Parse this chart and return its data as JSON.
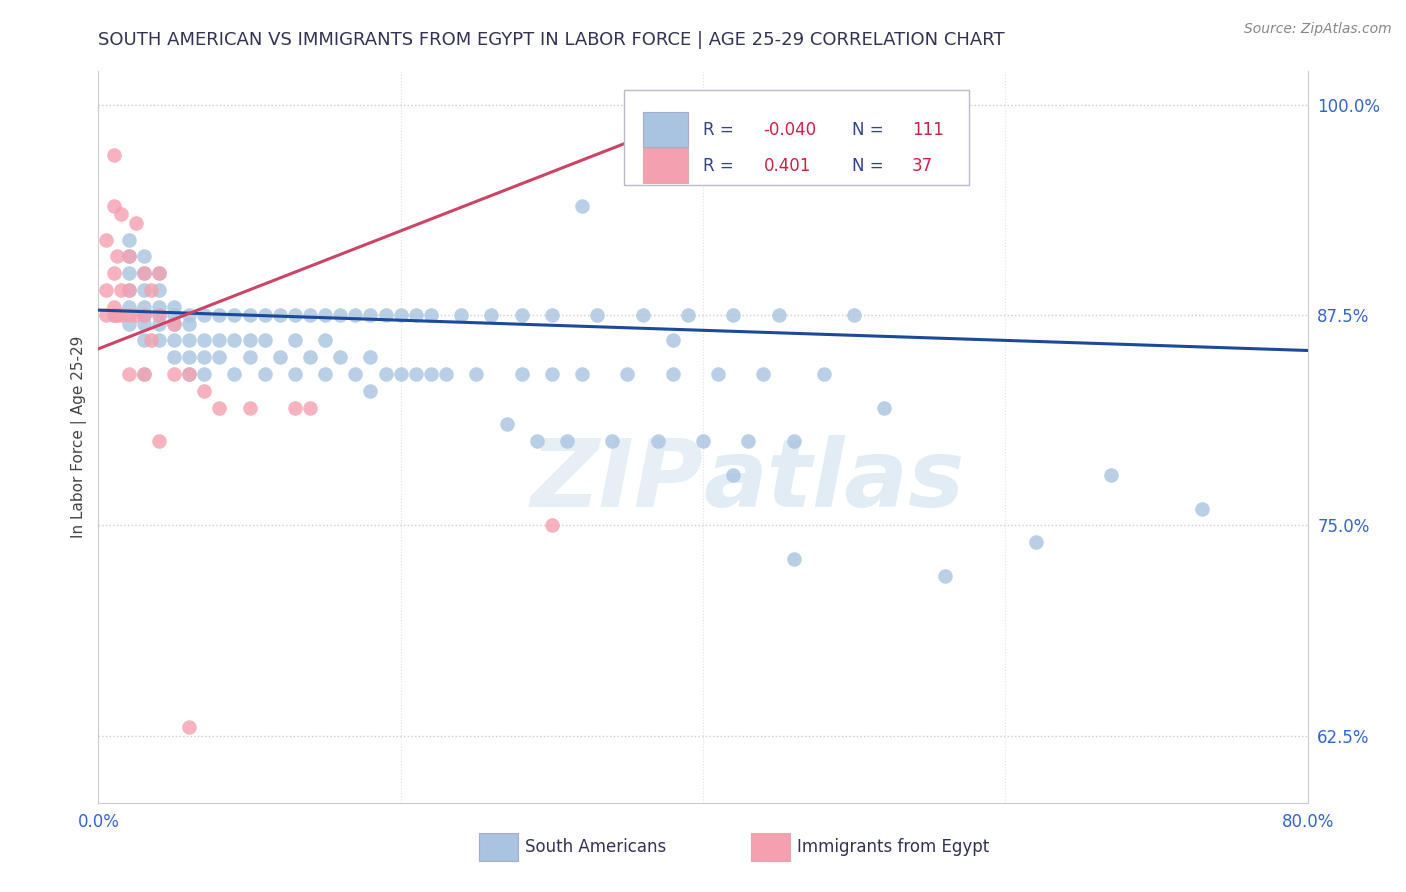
{
  "title": "SOUTH AMERICAN VS IMMIGRANTS FROM EGYPT IN LABOR FORCE | AGE 25-29 CORRELATION CHART",
  "source_text": "Source: ZipAtlas.com",
  "ylabel": "In Labor Force | Age 25-29",
  "x_min": 0.0,
  "x_max": 0.8,
  "y_min": 0.585,
  "y_max": 1.02,
  "x_ticks": [
    0.0,
    0.2,
    0.4,
    0.6,
    0.8
  ],
  "x_tick_labels": [
    "0.0%",
    "",
    "",
    "",
    "80.0%"
  ],
  "y_ticks": [
    0.625,
    0.75,
    0.875,
    1.0
  ],
  "y_tick_labels": [
    "62.5%",
    "75.0%",
    "87.5%",
    "100.0%"
  ],
  "blue_color": "#a8c4e0",
  "pink_color": "#f4a0b0",
  "blue_line_color": "#1a4a99",
  "pink_line_color": "#cc4466",
  "legend_R_blue": "-0.040",
  "legend_N_blue": "111",
  "legend_R_pink": "0.401",
  "legend_N_pink": "37",
  "watermark_zip": "ZIP",
  "watermark_atlas": "atlas",
  "legend_label_blue": "South Americans",
  "legend_label_pink": "Immigrants from Egypt",
  "blue_scatter_x": [
    0.01,
    0.02,
    0.02,
    0.02,
    0.02,
    0.02,
    0.02,
    0.03,
    0.03,
    0.03,
    0.03,
    0.03,
    0.03,
    0.03,
    0.03,
    0.03,
    0.04,
    0.04,
    0.04,
    0.04,
    0.04,
    0.04,
    0.05,
    0.05,
    0.05,
    0.05,
    0.05,
    0.06,
    0.06,
    0.06,
    0.06,
    0.06,
    0.07,
    0.07,
    0.07,
    0.07,
    0.08,
    0.08,
    0.08,
    0.09,
    0.09,
    0.09,
    0.1,
    0.1,
    0.1,
    0.11,
    0.11,
    0.11,
    0.12,
    0.12,
    0.13,
    0.13,
    0.13,
    0.14,
    0.14,
    0.15,
    0.15,
    0.15,
    0.16,
    0.16,
    0.17,
    0.17,
    0.18,
    0.18,
    0.18,
    0.19,
    0.19,
    0.2,
    0.2,
    0.21,
    0.21,
    0.22,
    0.22,
    0.23,
    0.24,
    0.25,
    0.26,
    0.27,
    0.28,
    0.28,
    0.29,
    0.3,
    0.3,
    0.31,
    0.32,
    0.33,
    0.34,
    0.35,
    0.36,
    0.37,
    0.38,
    0.39,
    0.4,
    0.41,
    0.42,
    0.43,
    0.44,
    0.45,
    0.46,
    0.48,
    0.5,
    0.32,
    0.38,
    0.42,
    0.46,
    0.52,
    0.56,
    0.62,
    0.67,
    0.73
  ],
  "blue_scatter_y": [
    0.875,
    0.87,
    0.88,
    0.89,
    0.9,
    0.91,
    0.92,
    0.86,
    0.87,
    0.875,
    0.88,
    0.89,
    0.9,
    0.91,
    0.875,
    0.84,
    0.86,
    0.87,
    0.875,
    0.88,
    0.89,
    0.9,
    0.85,
    0.86,
    0.87,
    0.875,
    0.88,
    0.85,
    0.86,
    0.87,
    0.875,
    0.84,
    0.85,
    0.86,
    0.875,
    0.84,
    0.85,
    0.86,
    0.875,
    0.84,
    0.86,
    0.875,
    0.85,
    0.86,
    0.875,
    0.84,
    0.86,
    0.875,
    0.85,
    0.875,
    0.84,
    0.86,
    0.875,
    0.85,
    0.875,
    0.84,
    0.86,
    0.875,
    0.85,
    0.875,
    0.84,
    0.875,
    0.83,
    0.85,
    0.875,
    0.84,
    0.875,
    0.84,
    0.875,
    0.84,
    0.875,
    0.84,
    0.875,
    0.84,
    0.875,
    0.84,
    0.875,
    0.81,
    0.84,
    0.875,
    0.8,
    0.84,
    0.875,
    0.8,
    0.84,
    0.875,
    0.8,
    0.84,
    0.875,
    0.8,
    0.84,
    0.875,
    0.8,
    0.84,
    0.875,
    0.8,
    0.84,
    0.875,
    0.8,
    0.84,
    0.875,
    0.94,
    0.86,
    0.78,
    0.73,
    0.82,
    0.72,
    0.74,
    0.78,
    0.76
  ],
  "pink_scatter_x": [
    0.005,
    0.005,
    0.005,
    0.01,
    0.01,
    0.01,
    0.01,
    0.01,
    0.012,
    0.012,
    0.015,
    0.015,
    0.015,
    0.02,
    0.02,
    0.02,
    0.02,
    0.025,
    0.025,
    0.03,
    0.03,
    0.03,
    0.035,
    0.035,
    0.04,
    0.04,
    0.05,
    0.05,
    0.06,
    0.07,
    0.08,
    0.1,
    0.13,
    0.14,
    0.3,
    0.04,
    0.06
  ],
  "pink_scatter_y": [
    0.875,
    0.89,
    0.92,
    0.875,
    0.88,
    0.9,
    0.94,
    0.97,
    0.875,
    0.91,
    0.875,
    0.89,
    0.935,
    0.84,
    0.875,
    0.89,
    0.91,
    0.875,
    0.93,
    0.84,
    0.875,
    0.9,
    0.86,
    0.89,
    0.875,
    0.9,
    0.84,
    0.87,
    0.84,
    0.83,
    0.82,
    0.82,
    0.82,
    0.82,
    0.75,
    0.8,
    0.63
  ],
  "blue_trend_x": [
    0.0,
    0.8
  ],
  "blue_trend_y": [
    0.878,
    0.854
  ],
  "pink_trend_x": [
    0.0,
    0.385
  ],
  "pink_trend_y": [
    0.855,
    0.99
  ]
}
